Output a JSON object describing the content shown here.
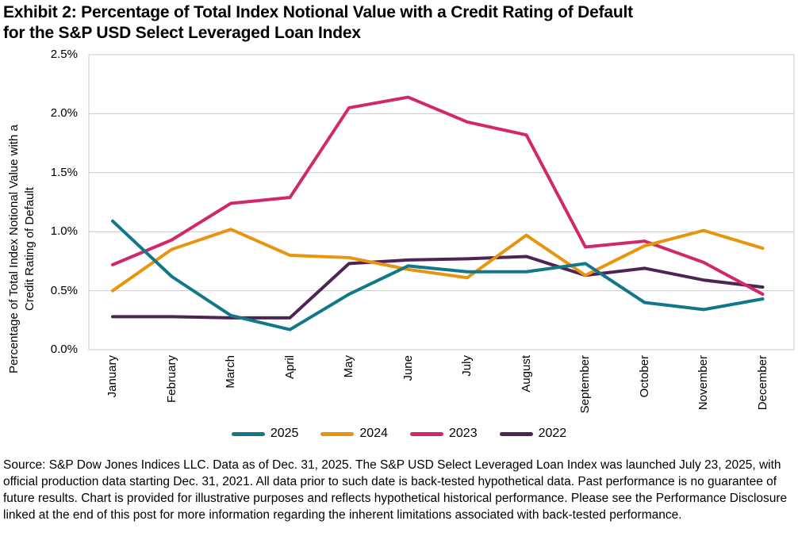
{
  "title": {
    "line1": "Exhibit 2: Percentage of Total Index Notional Value with a Credit Rating of Default",
    "line2": "for the S&P USD Select Leveraged Loan Index"
  },
  "source": {
    "text": "Source: S&P Dow Jones Indices LLC. Data as of Dec. 31, 2025. The S&P USD Select Leveraged Loan Index was launched July 23, 2025, with official production data starting Dec. 31, 2021. All data prior to such date is back-tested hypothetical data. Past performance is no guarantee of future results. Chart is provided for illustrative purposes and reflects hypothetical historical performance. Please see the Performance Disclosure linked at the end of this post for more information regarding the inherent limitations associated with back-tested performance."
  },
  "chart_data": {
    "type": "line",
    "title": "Exhibit 2: Percentage of Total Index Notional Value with a Credit Rating of Default for the S&P USD Select Leveraged Loan Index",
    "xlabel": "",
    "ylabel_line1": "Percentage of Total Index Notional Value with a",
    "ylabel_line2": "Credit Rating of Default",
    "ylim": [
      0,
      2.5
    ],
    "grid": true,
    "legend_position": "bottom",
    "yticks": [
      {
        "label": "0.0%",
        "value": 0.0
      },
      {
        "label": "0.5%",
        "value": 0.5
      },
      {
        "label": "1.0%",
        "value": 1.0
      },
      {
        "label": "1.5%",
        "value": 1.5
      },
      {
        "label": "2.0%",
        "value": 2.0
      },
      {
        "label": "2.5%",
        "value": 2.5
      }
    ],
    "categories": [
      "January",
      "February",
      "March",
      "April",
      "May",
      "June",
      "July",
      "August",
      "September",
      "October",
      "November",
      "December"
    ],
    "series": [
      {
        "name": "2025",
        "color": "#107889",
        "values": [
          1.09,
          0.62,
          0.29,
          0.17,
          0.47,
          0.71,
          0.66,
          0.66,
          0.73,
          0.4,
          0.34,
          0.43
        ]
      },
      {
        "name": "2024",
        "color": "#E8940E",
        "values": [
          0.5,
          0.85,
          1.02,
          0.8,
          0.78,
          0.68,
          0.61,
          0.97,
          0.63,
          0.88,
          1.01,
          0.86
        ]
      },
      {
        "name": "2023",
        "color": "#D0286B",
        "values": [
          0.72,
          0.93,
          1.24,
          1.29,
          2.05,
          2.14,
          1.93,
          1.82,
          0.87,
          0.92,
          0.74,
          0.47
        ]
      },
      {
        "name": "2022",
        "color": "#4E2355",
        "values": [
          0.28,
          0.28,
          0.27,
          0.27,
          0.73,
          0.76,
          0.77,
          0.79,
          0.63,
          0.69,
          0.59,
          0.53
        ]
      }
    ],
    "colors": {
      "gridline": "#C9C9C9",
      "plot_border": "#C9C9C9",
      "axis_text": "#000000"
    }
  }
}
